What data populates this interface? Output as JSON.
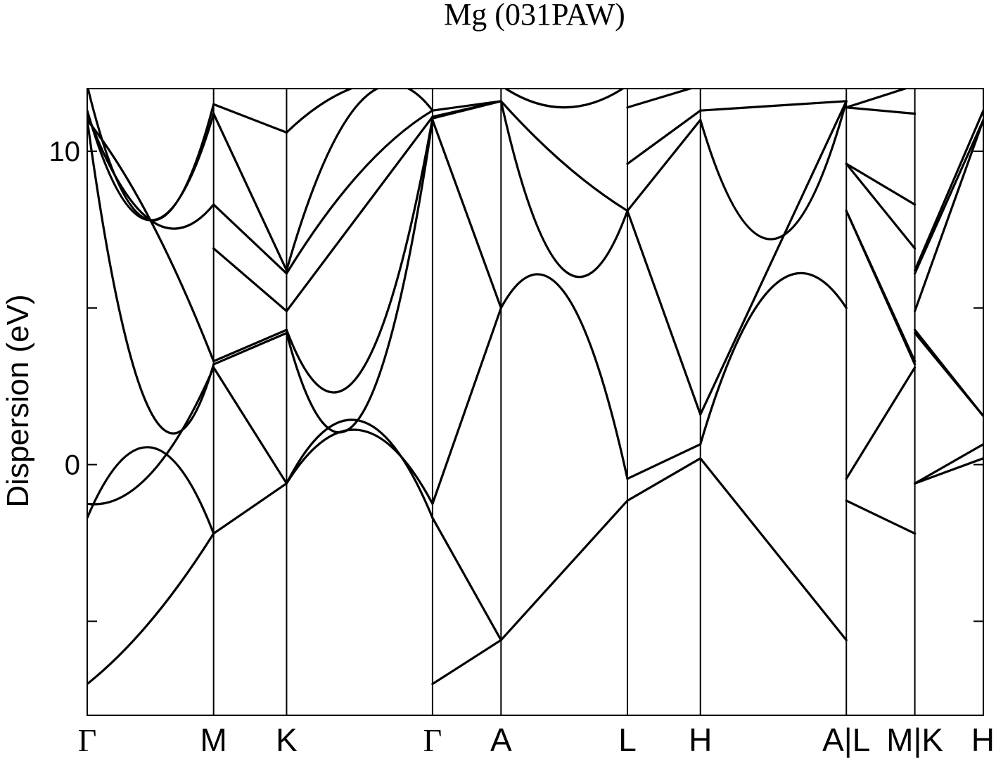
{
  "chart_data": {
    "type": "line",
    "title": "Mg (031PAW)",
    "xlabel": "",
    "ylabel": "Dispersion (eV)",
    "ylim": [
      -8,
      12
    ],
    "yticks": [
      -5,
      0,
      5,
      10
    ],
    "ytick_labels": [
      "",
      "0",
      "",
      "10"
    ],
    "grid": false,
    "kpoints": [
      {
        "label": "Γ",
        "x": 0.0
      },
      {
        "label": "M",
        "x": 1.0
      },
      {
        "label": "K",
        "x": 1.5774
      },
      {
        "label": "Γ",
        "x": 2.7321
      },
      {
        "label": "A",
        "x": 3.2741
      },
      {
        "label": "L",
        "x": 4.2741
      },
      {
        "label": "H",
        "x": 4.8515
      },
      {
        "label": "A|L",
        "x": 6.0062
      },
      {
        "label": "M|K",
        "x": 6.5482
      },
      {
        "label": "H",
        "x": 7.0902
      }
    ],
    "segments": [
      {
        "name": "Γ-M",
        "bands": [
          [
            -7.0,
            -5.0,
            -2.2
          ],
          [
            -1.7,
            0.55,
            -2.2
          ],
          [
            -1.25,
            -0.3,
            3.1
          ],
          [
            11.0,
            1.7,
            3.2
          ],
          [
            11.0,
            7.8,
            3.3
          ],
          [
            11.2,
            7.8,
            8.3
          ],
          [
            11.3,
            7.8,
            11.2
          ],
          [
            12.1,
            7.8,
            11.5
          ],
          [
            12.1,
            12.1,
            12.1
          ]
        ]
      },
      {
        "name": "M-K",
        "bands": [
          [
            -2.2,
            -0.6
          ],
          [
            3.1,
            -0.6
          ],
          [
            3.2,
            4.2
          ],
          [
            3.3,
            4.3
          ],
          [
            6.9,
            4.9
          ],
          [
            8.3,
            6.1
          ],
          [
            11.2,
            6.2
          ],
          [
            11.5,
            10.6
          ],
          [
            12.1,
            12.1
          ]
        ]
      },
      {
        "name": "K-Γ",
        "bands": [
          [
            -0.6,
            1.1,
            -1.25
          ],
          [
            -0.6,
            1.4,
            -1.7
          ],
          [
            4.2,
            1.5,
            11.0
          ],
          [
            4.3,
            2.9,
            11.05
          ],
          [
            4.9,
            8.0,
            11.1
          ],
          [
            6.1,
            9.3,
            11.3
          ],
          [
            6.2,
            11.55,
            11.3
          ],
          [
            10.6,
            12.1,
            12.1
          ]
        ]
      },
      {
        "name": "Γ-A",
        "bands": [
          [
            -7.0,
            -5.6
          ],
          [
            -1.7,
            -5.6
          ],
          [
            -1.25,
            5.0
          ],
          [
            11.0,
            5.0
          ],
          [
            11.05,
            11.6
          ],
          [
            11.1,
            11.6
          ],
          [
            11.3,
            11.6
          ]
        ]
      },
      {
        "name": "A-L",
        "bands": [
          [
            -5.6,
            -1.15
          ],
          [
            5.0,
            5.5,
            -0.45
          ],
          [
            11.6,
            6.2,
            8.1
          ],
          [
            11.6,
            9.6,
            8.1
          ],
          [
            12.1,
            11.4,
            12.1
          ]
        ]
      },
      {
        "name": "L-H",
        "bands": [
          [
            -1.15,
            0.2
          ],
          [
            -0.45,
            0.65
          ],
          [
            8.1,
            1.6
          ],
          [
            8.1,
            11.0
          ],
          [
            9.6,
            11.3
          ],
          [
            11.4,
            12.1
          ]
        ]
      },
      {
        "name": "H-A",
        "bands": [
          [
            0.2,
            -5.6
          ],
          [
            0.65,
            5.7,
            5.0
          ],
          [
            1.6,
            11.6
          ],
          [
            11.0,
            7.2,
            11.6
          ],
          [
            11.3,
            11.6
          ]
        ]
      },
      {
        "name": "L-M",
        "bands": [
          [
            -1.15,
            -2.2
          ],
          [
            -0.45,
            3.1
          ],
          [
            8.1,
            3.2
          ],
          [
            8.1,
            3.3
          ],
          [
            9.6,
            6.9
          ],
          [
            9.6,
            8.3
          ],
          [
            11.4,
            11.2
          ],
          [
            11.4,
            12.1
          ]
        ]
      },
      {
        "name": "K-H",
        "bands": [
          [
            -0.6,
            0.2
          ],
          [
            -0.6,
            0.65
          ],
          [
            4.2,
            1.55
          ],
          [
            4.3,
            1.55
          ],
          [
            4.9,
            11.0
          ],
          [
            6.1,
            11.0
          ],
          [
            6.2,
            11.3
          ]
        ]
      }
    ]
  }
}
